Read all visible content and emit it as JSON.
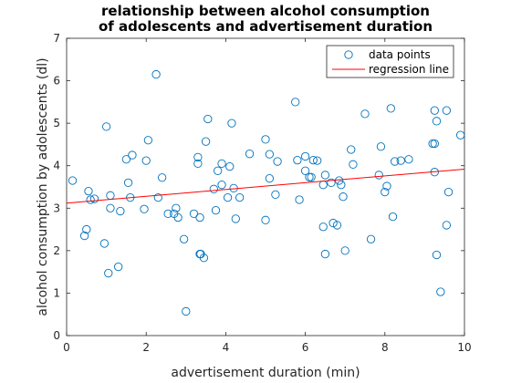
{
  "chart_data": {
    "type": "scatter",
    "title": [
      "relationship between alcohol consumption",
      "of adolescents and advertisement duration"
    ],
    "xlabel": "advertisement duration (min)",
    "ylabel": "alcohol consumption by adolescents (dl)",
    "xlim": [
      0,
      10
    ],
    "ylim": [
      0,
      7
    ],
    "xticks": [
      0,
      2,
      4,
      6,
      8,
      10
    ],
    "yticks": [
      0,
      1,
      2,
      3,
      4,
      5,
      6,
      7
    ],
    "grid": false,
    "legend_position": "top-right",
    "colors": {
      "points": "#0072BD",
      "regression": "#FF0000",
      "axes": "#262626"
    },
    "series": [
      {
        "name": "data points",
        "marker": "open-circle",
        "points": [
          [
            0.15,
            3.65
          ],
          [
            0.45,
            2.35
          ],
          [
            0.5,
            2.5
          ],
          [
            0.55,
            3.4
          ],
          [
            0.6,
            3.2
          ],
          [
            0.7,
            3.22
          ],
          [
            0.95,
            2.17
          ],
          [
            1.0,
            4.92
          ],
          [
            1.05,
            1.47
          ],
          [
            1.1,
            3.3
          ],
          [
            1.1,
            3.0
          ],
          [
            1.3,
            1.62
          ],
          [
            1.35,
            2.93
          ],
          [
            1.5,
            4.15
          ],
          [
            1.55,
            3.6
          ],
          [
            1.6,
            3.25
          ],
          [
            1.65,
            4.25
          ],
          [
            1.95,
            2.98
          ],
          [
            2.0,
            4.12
          ],
          [
            2.05,
            4.6
          ],
          [
            2.25,
            6.15
          ],
          [
            2.3,
            3.25
          ],
          [
            2.4,
            3.72
          ],
          [
            2.55,
            2.87
          ],
          [
            2.7,
            2.87
          ],
          [
            2.75,
            3.0
          ],
          [
            2.8,
            2.78
          ],
          [
            2.95,
            2.27
          ],
          [
            3.0,
            0.57
          ],
          [
            3.2,
            2.87
          ],
          [
            3.3,
            4.05
          ],
          [
            3.3,
            4.2
          ],
          [
            3.35,
            2.78
          ],
          [
            3.35,
            1.92
          ],
          [
            3.37,
            1.92
          ],
          [
            3.45,
            1.83
          ],
          [
            3.5,
            4.57
          ],
          [
            3.55,
            5.1
          ],
          [
            3.7,
            3.45
          ],
          [
            3.75,
            2.95
          ],
          [
            3.8,
            3.88
          ],
          [
            3.9,
            3.55
          ],
          [
            3.9,
            4.05
          ],
          [
            4.05,
            3.25
          ],
          [
            4.1,
            3.98
          ],
          [
            4.15,
            5.0
          ],
          [
            4.2,
            3.47
          ],
          [
            4.25,
            2.75
          ],
          [
            4.35,
            3.25
          ],
          [
            4.6,
            4.28
          ],
          [
            5.0,
            4.62
          ],
          [
            5.0,
            2.72
          ],
          [
            5.1,
            3.7
          ],
          [
            5.1,
            4.27
          ],
          [
            5.25,
            3.32
          ],
          [
            5.3,
            4.1
          ],
          [
            5.75,
            5.5
          ],
          [
            5.8,
            4.13
          ],
          [
            5.85,
            3.2
          ],
          [
            6.0,
            4.22
          ],
          [
            6.0,
            3.88
          ],
          [
            6.1,
            3.73
          ],
          [
            6.15,
            3.73
          ],
          [
            6.2,
            4.13
          ],
          [
            6.3,
            4.12
          ],
          [
            6.45,
            3.55
          ],
          [
            6.45,
            2.56
          ],
          [
            6.5,
            1.92
          ],
          [
            6.5,
            3.78
          ],
          [
            6.65,
            3.6
          ],
          [
            6.7,
            2.65
          ],
          [
            6.8,
            2.6
          ],
          [
            6.85,
            3.65
          ],
          [
            6.9,
            3.55
          ],
          [
            6.95,
            3.27
          ],
          [
            7.0,
            2.0
          ],
          [
            7.15,
            4.38
          ],
          [
            7.2,
            4.03
          ],
          [
            7.5,
            5.22
          ],
          [
            7.65,
            2.27
          ],
          [
            7.85,
            3.78
          ],
          [
            7.9,
            4.45
          ],
          [
            8.0,
            3.38
          ],
          [
            8.05,
            3.52
          ],
          [
            8.15,
            5.35
          ],
          [
            8.2,
            2.8
          ],
          [
            8.25,
            4.1
          ],
          [
            8.4,
            4.12
          ],
          [
            8.6,
            4.15
          ],
          [
            9.2,
            4.52
          ],
          [
            9.25,
            4.52
          ],
          [
            9.25,
            3.85
          ],
          [
            9.25,
            5.3
          ],
          [
            9.3,
            1.9
          ],
          [
            9.3,
            5.05
          ],
          [
            9.4,
            1.03
          ],
          [
            9.55,
            5.3
          ],
          [
            9.55,
            2.6
          ],
          [
            9.6,
            3.38
          ],
          [
            9.9,
            4.72
          ]
        ]
      },
      {
        "name": "regression line",
        "type": "line",
        "x": [
          0,
          10
        ],
        "y": [
          3.12,
          3.92
        ]
      }
    ]
  }
}
